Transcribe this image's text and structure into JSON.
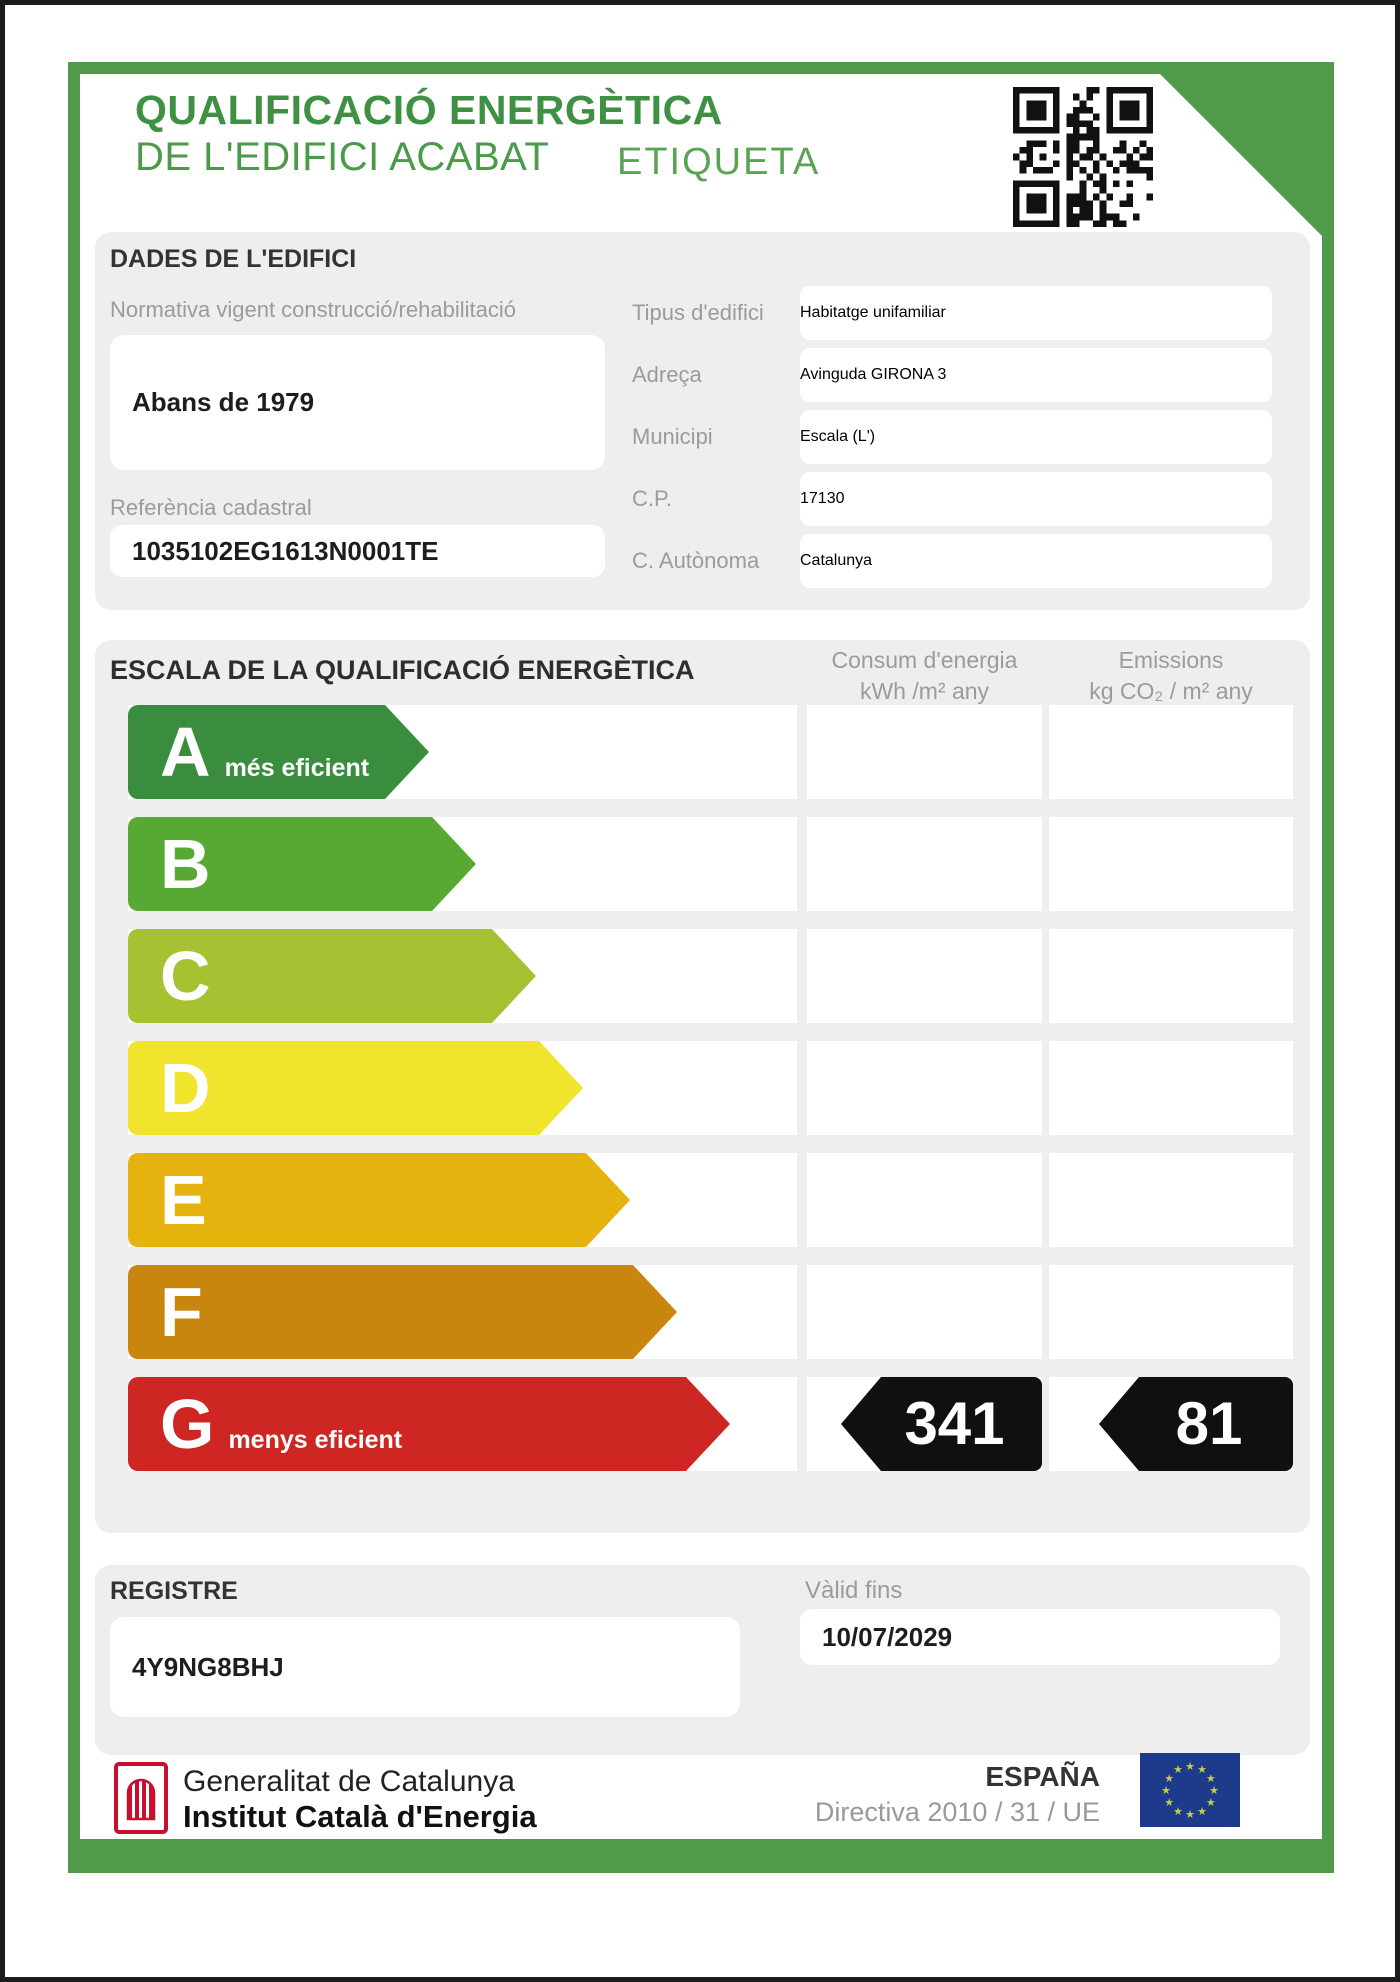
{
  "header": {
    "title_line1": "QUALIFICACIÓ ENERGÈTICA",
    "title_line2": "DE L'EDIFICI ACABAT",
    "badge": "ETIQUETA"
  },
  "building": {
    "section_title": "DADES DE L'EDIFICI",
    "left_fields": [
      {
        "label": "Normativa vigent construcció/rehabilitació",
        "value": "Abans de 1979"
      },
      {
        "label": "Referència cadastral",
        "value": "1035102EG1613N0001TE"
      }
    ],
    "right_fields": [
      {
        "label": "Tipus d'edifici",
        "value": "Habitatge unifamiliar"
      },
      {
        "label": "Adreça",
        "value": "Avinguda GIRONA 3"
      },
      {
        "label": "Municipi",
        "value": "Escala (L')"
      },
      {
        "label": "C.P.",
        "value": "17130"
      },
      {
        "label": "C. Autònoma",
        "value": "Catalunya"
      }
    ]
  },
  "scale": {
    "section_title": "ESCALA DE LA QUALIFICACIÓ ENERGÈTICA",
    "consum_header_line1": "Consum d'energia",
    "consum_header_line2": "kWh /m² any",
    "emissions_header_line1": "Emissions",
    "emissions_header_line2": "kg CO₂ / m² any",
    "ratings": [
      {
        "letter": "A",
        "note": "més eficient",
        "color": "#3a8d3f",
        "width_pct": 45
      },
      {
        "letter": "B",
        "note": "",
        "color": "#58a834",
        "width_pct": 52
      },
      {
        "letter": "C",
        "note": "",
        "color": "#a6c131",
        "width_pct": 61
      },
      {
        "letter": "D",
        "note": "",
        "color": "#f0e42c",
        "width_pct": 68
      },
      {
        "letter": "E",
        "note": "",
        "color": "#e5b30d",
        "width_pct": 75
      },
      {
        "letter": "F",
        "note": "",
        "color": "#c9860e",
        "width_pct": 82
      },
      {
        "letter": "G",
        "note": "menys eficient",
        "color": "#ce2723",
        "width_pct": 90
      }
    ],
    "rated_letter": "G",
    "consum_value": "341",
    "emissions_value": "81"
  },
  "registre": {
    "section_title": "REGISTRE",
    "value": "4Y9NG8BHJ",
    "valid_label": "Vàlid fins",
    "valid_value": "10/07/2029"
  },
  "footer": {
    "org_line1": "Generalitat de Catalunya",
    "org_line2": "Institut Català d'Energia",
    "country": "ESPAÑA",
    "directive": "Directiva 2010 / 31 / UE"
  },
  "colors": {
    "frame_green": "#4f9b49",
    "title_green": "#3e9043",
    "badge_green": "#5aa355",
    "panel_gray": "#eeeeee",
    "label_gray": "#9b9b9b",
    "value_black": "#1d1d1d",
    "tag_black": "#101010",
    "eu_blue": "#1e3a8a",
    "logo_red": "#c8102e"
  }
}
